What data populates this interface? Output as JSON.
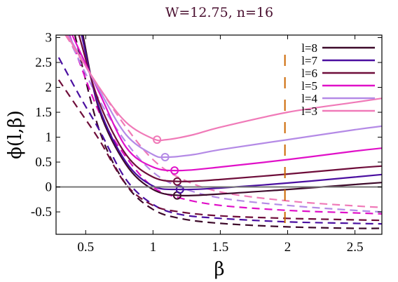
{
  "chart_data": {
    "type": "line",
    "title": "W=12.75, n=16",
    "xlabel": "β",
    "ylabel": "ϕ(l,β)",
    "xlim": [
      0.28,
      2.7
    ],
    "ylim": [
      -0.95,
      3.05
    ],
    "xticks": [
      0.5,
      1,
      1.5,
      2,
      2.5
    ],
    "xtick_labels": [
      "0.5",
      "1",
      "1.5",
      "2",
      "2.5"
    ],
    "yticks": [
      -0.5,
      0,
      0.5,
      1,
      1.5,
      2,
      2.5,
      3
    ],
    "ytick_labels": [
      "-0.5",
      "0",
      "0.5",
      "1",
      "1.5",
      "2",
      "2.5",
      "3"
    ],
    "legend_position": "top-right",
    "grid": false,
    "reference_lines": [
      {
        "type": "horizontal",
        "y": 0,
        "color": "#777777",
        "style": "solid"
      },
      {
        "type": "vertical",
        "x": 1.98,
        "color": "#cc6600",
        "style": "dashed"
      }
    ],
    "series": [
      {
        "name": "l=8",
        "color": "#3d0a2a",
        "min_marker": {
          "x": 1.18,
          "y": -0.17
        },
        "solid": {
          "x": [
            0.48,
            0.6,
            0.8,
            1.0,
            1.2,
            1.5,
            2.0,
            2.5,
            2.7
          ],
          "y": [
            3.05,
            1.55,
            0.45,
            -0.05,
            -0.17,
            -0.14,
            -0.05,
            0.05,
            0.09
          ]
        },
        "dashed": {
          "x": [
            0.42,
            0.6,
            0.8,
            1.0,
            1.2,
            1.5,
            2.0,
            2.5,
            2.7
          ],
          "y": [
            3.05,
            1.15,
            0.05,
            -0.45,
            -0.63,
            -0.73,
            -0.8,
            -0.83,
            -0.83
          ]
        }
      },
      {
        "name": "l=7",
        "color": "#4a0fa0",
        "min_marker": {
          "x": 1.2,
          "y": -0.05
        },
        "solid": {
          "x": [
            0.47,
            0.6,
            0.8,
            1.0,
            1.2,
            1.5,
            2.0,
            2.5,
            2.7
          ],
          "y": [
            3.05,
            1.6,
            0.5,
            0.02,
            -0.05,
            -0.02,
            0.08,
            0.2,
            0.25
          ]
        },
        "dashed": {
          "x": [
            0.3,
            0.45,
            0.6,
            0.8,
            1.0,
            1.2,
            1.5,
            2.0,
            2.5,
            2.7
          ],
          "y": [
            2.6,
            1.85,
            1.15,
            0.15,
            -0.35,
            -0.55,
            -0.63,
            -0.7,
            -0.73,
            -0.74
          ]
        }
      },
      {
        "name": "l=6",
        "color": "#6e0d3a",
        "min_marker": {
          "x": 1.18,
          "y": 0.11
        },
        "solid": {
          "x": [
            0.45,
            0.6,
            0.8,
            1.0,
            1.2,
            1.5,
            2.0,
            2.5,
            2.7
          ],
          "y": [
            3.05,
            1.7,
            0.65,
            0.2,
            0.11,
            0.15,
            0.26,
            0.38,
            0.42
          ]
        },
        "dashed": {
          "x": [
            0.3,
            0.45,
            0.6,
            0.8,
            1.0,
            1.2,
            1.5,
            2.0,
            2.5,
            2.7
          ],
          "y": [
            2.15,
            1.55,
            0.95,
            0.05,
            -0.37,
            -0.5,
            -0.58,
            -0.63,
            -0.66,
            -0.67
          ]
        }
      },
      {
        "name": "l=5",
        "color": "#e010c8",
        "min_marker": {
          "x": 1.16,
          "y": 0.33
        },
        "solid": {
          "x": [
            0.4,
            0.6,
            0.8,
            1.0,
            1.2,
            1.5,
            2.0,
            2.5,
            2.7
          ],
          "y": [
            3.05,
            1.9,
            0.8,
            0.4,
            0.33,
            0.4,
            0.55,
            0.72,
            0.78
          ]
        },
        "dashed": {
          "x": [
            0.38,
            0.6,
            0.8,
            1.0,
            1.2,
            1.5,
            2.0,
            2.5,
            2.7
          ],
          "y": [
            3.05,
            1.5,
            0.6,
            0.0,
            -0.22,
            -0.37,
            -0.47,
            -0.52,
            -0.54
          ]
        }
      },
      {
        "name": "l=4",
        "color": "#b48ae6",
        "min_marker": {
          "x": 1.09,
          "y": 0.6
        },
        "solid": {
          "x": [
            0.37,
            0.6,
            0.8,
            1.0,
            1.1,
            1.3,
            1.5,
            2.0,
            2.5,
            2.7
          ],
          "y": [
            3.05,
            1.95,
            1.05,
            0.65,
            0.6,
            0.65,
            0.75,
            0.95,
            1.15,
            1.22
          ]
        },
        "dashed": {
          "x": [
            0.36,
            0.6,
            0.8,
            1.0,
            1.2,
            1.5,
            2.0,
            2.5,
            2.7
          ],
          "y": [
            3.05,
            1.75,
            0.9,
            0.3,
            0.0,
            -0.22,
            -0.37,
            -0.47,
            -0.5
          ]
        }
      },
      {
        "name": "l=3",
        "color": "#f07ab8",
        "min_marker": {
          "x": 1.03,
          "y": 0.95
        },
        "solid": {
          "x": [
            0.36,
            0.6,
            0.8,
            1.0,
            1.1,
            1.3,
            1.5,
            2.0,
            2.5,
            2.7
          ],
          "y": [
            3.05,
            2.0,
            1.3,
            0.97,
            0.95,
            1.05,
            1.2,
            1.5,
            1.7,
            1.78
          ]
        },
        "dashed": {
          "x": [
            0.35,
            0.6,
            0.8,
            1.0,
            1.2,
            1.5,
            2.0,
            2.5,
            2.7
          ],
          "y": [
            3.05,
            2.0,
            1.2,
            0.55,
            0.18,
            -0.1,
            -0.28,
            -0.38,
            -0.41
          ]
        }
      }
    ]
  }
}
